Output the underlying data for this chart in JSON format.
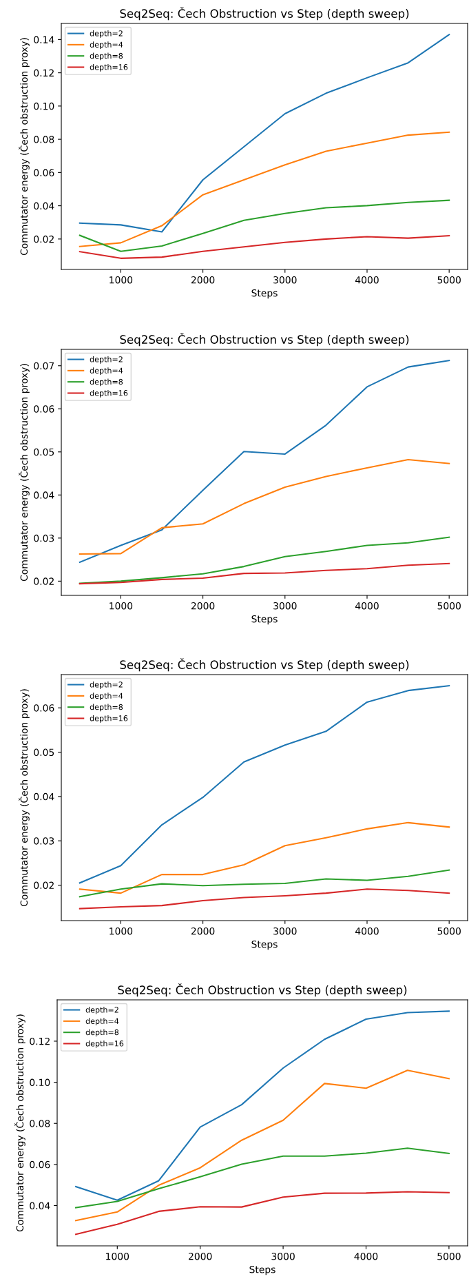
{
  "chart_data": [
    {
      "type": "line",
      "title": "Seq2Seq: Čech Obstruction vs Step (depth sweep)",
      "xlabel": "Steps",
      "ylabel": "Commutator energy (Čech obstruction proxy)",
      "x": [
        500,
        1000,
        1500,
        2000,
        2500,
        3000,
        3500,
        4000,
        4500,
        5000
      ],
      "xlim": [
        275,
        5225
      ],
      "xticks": [
        1000,
        2000,
        3000,
        4000,
        5000
      ],
      "ylim": [
        0.0017,
        0.1497
      ],
      "yticks": [
        {
          "value": 0.02,
          "label": "0.02"
        },
        {
          "value": 0.04,
          "label": "0.04"
        },
        {
          "value": 0.06,
          "label": "0.06"
        },
        {
          "value": 0.08,
          "label": "0.08"
        },
        {
          "value": 0.1,
          "label": "0.10"
        },
        {
          "value": 0.12,
          "label": "0.12"
        },
        {
          "value": 0.14,
          "label": "0.14"
        }
      ],
      "legend": "top left",
      "grid": false,
      "series": [
        {
          "name": "depth=2",
          "color": "#1f77b4",
          "values": [
            0.0296,
            0.0285,
            0.0243,
            0.0556,
            0.0755,
            0.0954,
            0.1077,
            0.117,
            0.126,
            0.143
          ]
        },
        {
          "name": "depth=4",
          "color": "#ff7f0e",
          "values": [
            0.0155,
            0.0177,
            0.028,
            0.0466,
            0.0556,
            0.0646,
            0.0728,
            0.0777,
            0.0825,
            0.0843
          ]
        },
        {
          "name": "depth=8",
          "color": "#2ca02c",
          "values": [
            0.0222,
            0.0126,
            0.0158,
            0.0234,
            0.0312,
            0.0354,
            0.0388,
            0.0401,
            0.042,
            0.0433
          ]
        },
        {
          "name": "depth=16",
          "color": "#d62728",
          "values": [
            0.0124,
            0.0084,
            0.0091,
            0.0126,
            0.0153,
            0.018,
            0.02,
            0.0214,
            0.0205,
            0.022
          ]
        }
      ]
    },
    {
      "type": "line",
      "title": "Seq2Seq: Čech Obstruction vs Step (depth sweep)",
      "xlabel": "Steps",
      "ylabel": "Commutator energy (Čech obstruction proxy)",
      "x": [
        500,
        1000,
        1500,
        2000,
        2500,
        3000,
        3500,
        4000,
        4500,
        5000
      ],
      "xlim": [
        275,
        5225
      ],
      "xticks": [
        1000,
        2000,
        3000,
        4000,
        5000
      ],
      "ylim": [
        0.0167,
        0.0738
      ],
      "yticks": [
        0.02,
        0.03,
        0.04,
        0.05,
        0.06,
        0.07
      ],
      "legend": "top left",
      "grid": false,
      "series": [
        {
          "name": "depth=2",
          "color": "#1f77b4",
          "values": [
            0.0244,
            0.0283,
            0.0319,
            0.0411,
            0.0501,
            0.0495,
            0.0562,
            0.0651,
            0.0697,
            0.0712
          ]
        },
        {
          "name": "depth=4",
          "color": "#ff7f0e",
          "values": [
            0.0263,
            0.0264,
            0.0324,
            0.0333,
            0.038,
            0.0418,
            0.0443,
            0.0463,
            0.0482,
            0.0473
          ]
        },
        {
          "name": "depth=8",
          "color": "#2ca02c",
          "values": [
            0.0195,
            0.02,
            0.0208,
            0.0217,
            0.0234,
            0.0257,
            0.0269,
            0.0283,
            0.0289,
            0.0302
          ]
        },
        {
          "name": "depth=16",
          "color": "#d62728",
          "values": [
            0.0194,
            0.0197,
            0.0204,
            0.0207,
            0.0218,
            0.0219,
            0.0225,
            0.0229,
            0.0237,
            0.0241
          ]
        }
      ]
    },
    {
      "type": "line",
      "title": "Seq2Seq: Čech Obstruction vs Step (depth sweep)",
      "xlabel": "Steps",
      "ylabel": "Commutator energy (Čech obstruction proxy)",
      "x": [
        500,
        1000,
        1500,
        2000,
        2500,
        3000,
        3500,
        4000,
        4500,
        5000
      ],
      "xlim": [
        275,
        5225
      ],
      "xticks": [
        1000,
        2000,
        3000,
        4000,
        5000
      ],
      "ylim": [
        0.012,
        0.0675
      ],
      "yticks": [
        0.02,
        0.03,
        0.04,
        0.05,
        0.06
      ],
      "legend": "top left",
      "grid": false,
      "series": [
        {
          "name": "depth=2",
          "color": "#1f77b4",
          "values": [
            0.0205,
            0.0244,
            0.0336,
            0.0398,
            0.0478,
            0.0516,
            0.0547,
            0.0613,
            0.0639,
            0.065
          ]
        },
        {
          "name": "depth=4",
          "color": "#ff7f0e",
          "values": [
            0.0191,
            0.0182,
            0.0224,
            0.0224,
            0.0246,
            0.0289,
            0.0307,
            0.0327,
            0.0341,
            0.0331
          ]
        },
        {
          "name": "depth=8",
          "color": "#2ca02c",
          "values": [
            0.0174,
            0.0191,
            0.0203,
            0.0199,
            0.0202,
            0.0204,
            0.0214,
            0.0211,
            0.022,
            0.0234
          ]
        },
        {
          "name": "depth=16",
          "color": "#d62728",
          "values": [
            0.0147,
            0.0151,
            0.0154,
            0.0165,
            0.0172,
            0.0176,
            0.0182,
            0.0191,
            0.0188,
            0.0182
          ]
        }
      ]
    },
    {
      "type": "line",
      "title": "Seq2Seq: Čech Obstruction vs Step (depth sweep)",
      "xlabel": "Steps",
      "ylabel": "Commutator energy (Čech obstruction proxy)",
      "x": [
        500,
        1000,
        1500,
        2000,
        2500,
        3000,
        3500,
        4000,
        4500,
        5000
      ],
      "xlim": [
        275,
        5225
      ],
      "xticks": [
        1000,
        2000,
        3000,
        4000,
        5000
      ],
      "ylim": [
        0.0204,
        0.1401
      ],
      "yticks": [
        {
          "value": 0.04,
          "label": "0.04"
        },
        {
          "value": 0.06,
          "label": "0.06"
        },
        {
          "value": 0.08,
          "label": "0.08"
        },
        {
          "value": 0.1,
          "label": "0.10"
        },
        {
          "value": 0.12,
          "label": "0.12"
        }
      ],
      "legend": "top left",
      "grid": false,
      "series": [
        {
          "name": "depth=2",
          "color": "#1f77b4",
          "values": [
            0.0492,
            0.0426,
            0.0521,
            0.0782,
            0.0891,
            0.1069,
            0.1209,
            0.1307,
            0.1339,
            0.1346
          ]
        },
        {
          "name": "depth=4",
          "color": "#ff7f0e",
          "values": [
            0.0327,
            0.0369,
            0.0499,
            0.0584,
            0.0718,
            0.0815,
            0.0994,
            0.0971,
            0.1058,
            0.1018
          ]
        },
        {
          "name": "depth=8",
          "color": "#2ca02c",
          "values": [
            0.039,
            0.042,
            0.0482,
            0.054,
            0.0601,
            0.0641,
            0.0641,
            0.0655,
            0.0679,
            0.0654
          ]
        },
        {
          "name": "depth=16",
          "color": "#d62728",
          "values": [
            0.026,
            0.0309,
            0.0372,
            0.0394,
            0.0393,
            0.0441,
            0.046,
            0.0461,
            0.0467,
            0.0463
          ]
        }
      ]
    }
  ]
}
